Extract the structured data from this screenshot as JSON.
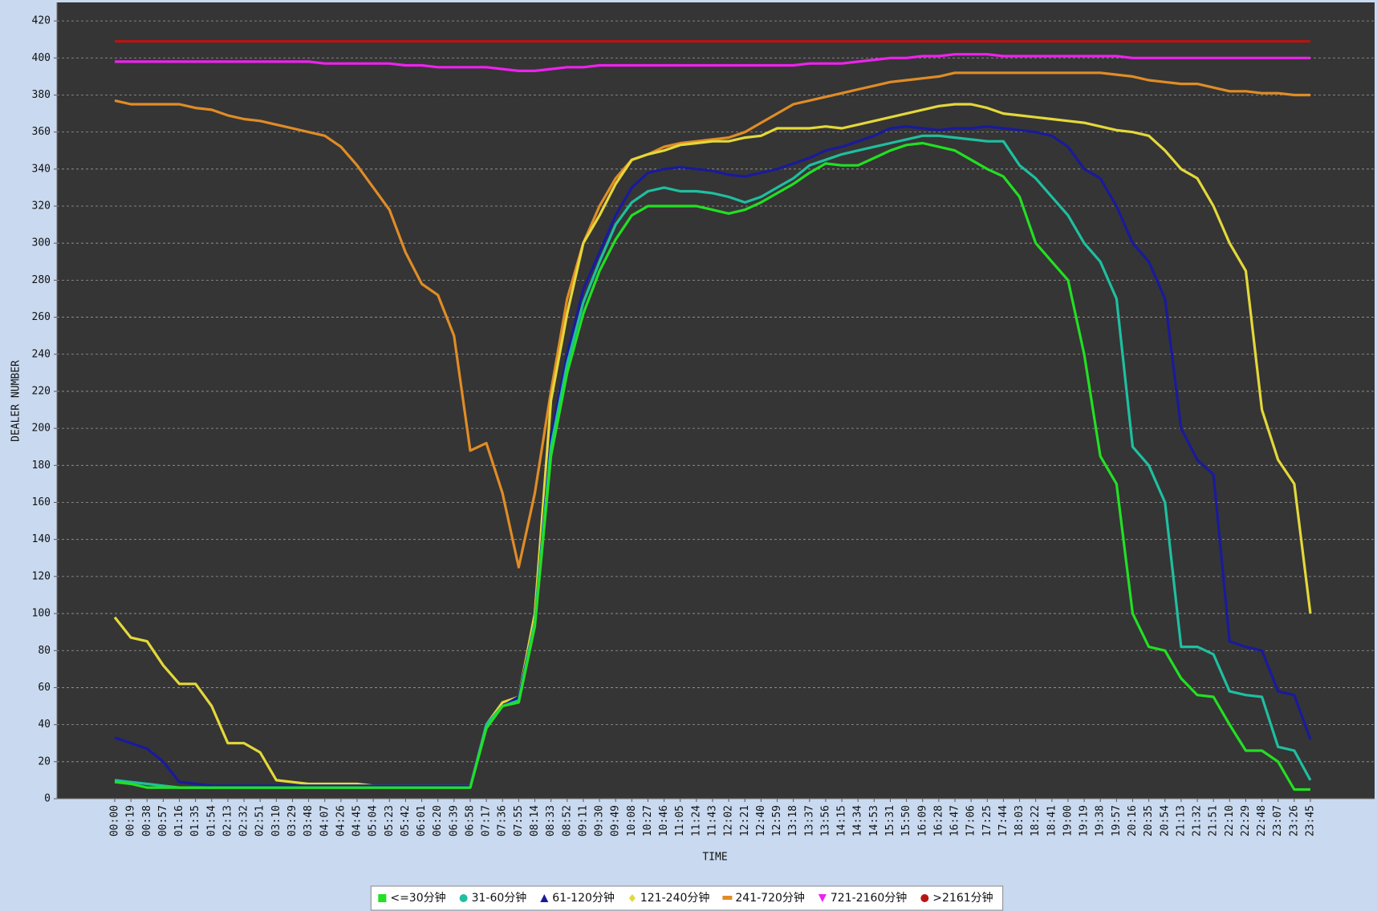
{
  "chart_data": {
    "type": "line",
    "y_label": "DEALER NUMBER",
    "x_label": "TIME",
    "categories": [
      "00:00",
      "00:19",
      "00:38",
      "00:57",
      "01:16",
      "01:35",
      "01:54",
      "02:13",
      "02:32",
      "02:51",
      "03:10",
      "03:29",
      "03:48",
      "04:07",
      "04:26",
      "04:45",
      "05:04",
      "05:23",
      "05:42",
      "06:01",
      "06:20",
      "06:39",
      "06:58",
      "07:17",
      "07:36",
      "07:55",
      "08:14",
      "08:33",
      "08:52",
      "09:11",
      "09:30",
      "09:49",
      "10:08",
      "10:27",
      "10:46",
      "11:05",
      "11:24",
      "11:43",
      "12:02",
      "12:21",
      "12:40",
      "12:59",
      "13:18",
      "13:37",
      "13:56",
      "14:15",
      "14:34",
      "14:53",
      "15:31",
      "15:50",
      "16:09",
      "16:28",
      "16:47",
      "17:06",
      "17:25",
      "17:44",
      "18:03",
      "18:22",
      "18:41",
      "19:00",
      "19:19",
      "19:38",
      "19:57",
      "20:16",
      "20:35",
      "20:54",
      "21:13",
      "21:32",
      "21:51",
      "22:10",
      "22:29",
      "22:48",
      "23:07",
      "23:26",
      "23:45"
    ],
    "ylim": [
      0,
      430
    ],
    "yticks": [
      0,
      20,
      40,
      60,
      80,
      100,
      120,
      140,
      160,
      180,
      200,
      220,
      240,
      260,
      280,
      300,
      320,
      340,
      360,
      380,
      400,
      420
    ],
    "grid": true,
    "legend": "bottom",
    "series": [
      {
        "name": "<=30分钟",
        "color": "#22e022",
        "marker": "square",
        "values": [
          9,
          8,
          6,
          6,
          6,
          6,
          6,
          6,
          6,
          6,
          6,
          6,
          6,
          6,
          6,
          6,
          6,
          6,
          6,
          6,
          6,
          6,
          6,
          38,
          50,
          52,
          93,
          185,
          230,
          262,
          285,
          302,
          315,
          320,
          320,
          320,
          320,
          318,
          316,
          318,
          322,
          327,
          332,
          338,
          343,
          342,
          342,
          346,
          350,
          353,
          354,
          352,
          350,
          345,
          340,
          336,
          325,
          300,
          290,
          280,
          240,
          185,
          170,
          100,
          82,
          80,
          65,
          56,
          55,
          40,
          26,
          26,
          20,
          5,
          5
        ]
      },
      {
        "name": "31-60分钟",
        "color": "#1fbf9f",
        "marker": "circle",
        "values": [
          10,
          9,
          8,
          7,
          6,
          6,
          6,
          6,
          6,
          6,
          6,
          6,
          6,
          6,
          6,
          6,
          6,
          6,
          6,
          6,
          6,
          6,
          6,
          40,
          50,
          53,
          95,
          190,
          235,
          268,
          290,
          310,
          322,
          328,
          330,
          328,
          328,
          327,
          325,
          322,
          325,
          330,
          335,
          342,
          345,
          348,
          350,
          352,
          354,
          356,
          358,
          358,
          357,
          356,
          355,
          355,
          342,
          335,
          325,
          315,
          300,
          290,
          270,
          190,
          180,
          160,
          82,
          82,
          78,
          58,
          56,
          55,
          28,
          26,
          10
        ]
      },
      {
        "name": "61-120分钟",
        "color": "#1a1a9c",
        "marker": "triangle",
        "values": [
          33,
          30,
          27,
          20,
          9,
          8,
          7,
          7,
          7,
          7,
          7,
          7,
          7,
          7,
          7,
          7,
          7,
          7,
          7,
          7,
          7,
          7,
          7,
          40,
          50,
          55,
          95,
          195,
          240,
          275,
          295,
          315,
          330,
          338,
          340,
          341,
          340,
          339,
          337,
          336,
          338,
          340,
          343,
          346,
          350,
          352,
          355,
          358,
          362,
          363,
          362,
          361,
          362,
          362,
          363,
          362,
          361,
          360,
          358,
          352,
          340,
          335,
          320,
          300,
          290,
          270,
          200,
          183,
          175,
          85,
          82,
          80,
          58,
          56,
          32
        ]
      },
      {
        "name": "121-240分钟",
        "color": "#e3d83a",
        "marker": "diamond",
        "values": [
          98,
          87,
          85,
          72,
          62,
          62,
          50,
          30,
          30,
          25,
          10,
          9,
          8,
          8,
          8,
          8,
          7,
          7,
          7,
          7,
          7,
          7,
          7,
          40,
          52,
          55,
          100,
          215,
          262,
          300,
          315,
          332,
          345,
          348,
          350,
          353,
          354,
          355,
          355,
          357,
          358,
          362,
          362,
          362,
          363,
          362,
          364,
          366,
          368,
          370,
          372,
          374,
          375,
          375,
          373,
          370,
          369,
          368,
          367,
          366,
          365,
          363,
          361,
          360,
          358,
          350,
          340,
          335,
          320,
          300,
          285,
          210,
          183,
          170,
          100
        ]
      },
      {
        "name": "241-720分钟",
        "color": "#e08c26",
        "marker": "bar",
        "values": [
          377,
          375,
          375,
          375,
          375,
          373,
          372,
          369,
          367,
          366,
          364,
          362,
          360,
          358,
          352,
          342,
          330,
          318,
          295,
          278,
          272,
          250,
          188,
          192,
          165,
          125,
          165,
          220,
          270,
          300,
          320,
          335,
          345,
          348,
          352,
          354,
          355,
          356,
          357,
          360,
          365,
          370,
          375,
          377,
          379,
          381,
          383,
          385,
          387,
          388,
          389,
          390,
          392,
          392,
          392,
          392,
          392,
          392,
          392,
          392,
          392,
          392,
          391,
          390,
          388,
          387,
          386,
          386,
          384,
          382,
          382,
          381,
          381,
          380,
          380
        ]
      },
      {
        "name": "721-2160分钟",
        "color": "#ee22ee",
        "marker": "triangle-down",
        "values": [
          398,
          398,
          398,
          398,
          398,
          398,
          398,
          398,
          398,
          398,
          398,
          398,
          398,
          397,
          397,
          397,
          397,
          397,
          396,
          396,
          395,
          395,
          395,
          395,
          394,
          393,
          393,
          394,
          395,
          395,
          396,
          396,
          396,
          396,
          396,
          396,
          396,
          396,
          396,
          396,
          396,
          396,
          396,
          397,
          397,
          397,
          398,
          399,
          400,
          400,
          401,
          401,
          402,
          402,
          402,
          401,
          401,
          401,
          401,
          401,
          401,
          401,
          401,
          400,
          400,
          400,
          400,
          400,
          400,
          400,
          400,
          400,
          400,
          400,
          400
        ]
      },
      {
        "name": ">2161分钟",
        "color": "#b81414",
        "marker": "circle",
        "values": [
          409,
          409,
          409,
          409,
          409,
          409,
          409,
          409,
          409,
          409,
          409,
          409,
          409,
          409,
          409,
          409,
          409,
          409,
          409,
          409,
          409,
          409,
          409,
          409,
          409,
          409,
          409,
          409,
          409,
          409,
          409,
          409,
          409,
          409,
          409,
          409,
          409,
          409,
          409,
          409,
          409,
          409,
          409,
          409,
          409,
          409,
          409,
          409,
          409,
          409,
          409,
          409,
          409,
          409,
          409,
          409,
          409,
          409,
          409,
          409,
          409,
          409,
          409,
          409,
          409,
          409,
          409,
          409,
          409,
          409,
          409,
          409,
          409,
          409,
          409
        ]
      }
    ]
  }
}
